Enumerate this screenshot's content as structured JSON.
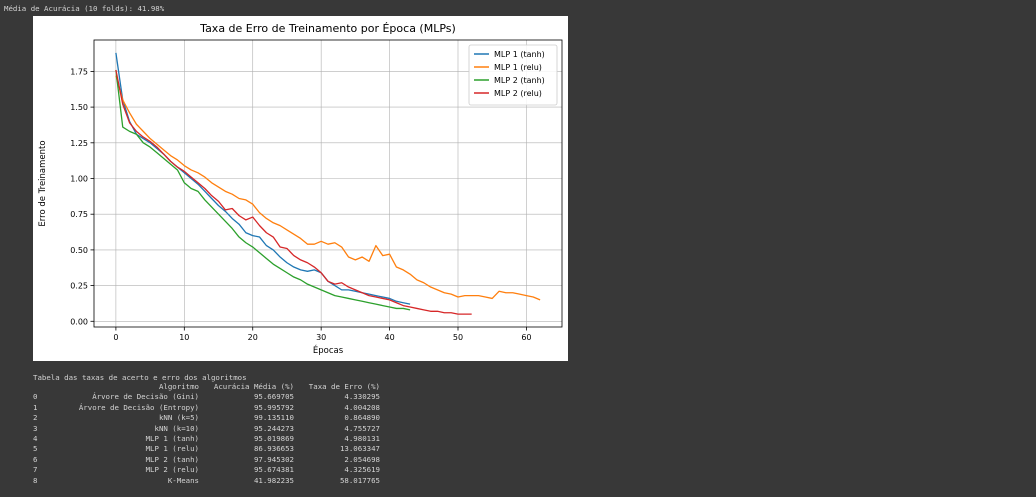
{
  "output": {
    "accuracy_line": "Média de Acurácia (10 folds): 41.98%",
    "table_title": "Tabela das taxas de acerto e erro dos algoritmos"
  },
  "colors": {
    "mlp1_tanh": "#1f77b4",
    "mlp1_relu": "#ff7f0e",
    "mlp2_tanh": "#2ca02c",
    "mlp2_relu": "#d62728"
  },
  "chart_data": {
    "type": "line",
    "title": "Taxa de Erro de Treinamento por Época (MLPs)",
    "xlabel": "Épocas",
    "ylabel": "Erro de Treinamento",
    "xlim": [
      -3.2,
      65.2
    ],
    "ylim": [
      -0.04,
      1.97
    ],
    "xticks": [
      0,
      10,
      20,
      30,
      40,
      50,
      60
    ],
    "yticks": [
      0.0,
      0.25,
      0.5,
      0.75,
      1.0,
      1.25,
      1.5,
      1.75
    ],
    "xtick_labels": [
      "0",
      "10",
      "20",
      "30",
      "40",
      "50",
      "60"
    ],
    "ytick_labels": [
      "0.00",
      "0.25",
      "0.50",
      "0.75",
      "1.00",
      "1.25",
      "1.50",
      "1.75"
    ],
    "grid": true,
    "legend_position": "top-right",
    "series": [
      {
        "name": "MLP 1 (tanh)",
        "color": "#1f77b4",
        "x": [
          0,
          1,
          2,
          3,
          4,
          5,
          6,
          7,
          8,
          9,
          10,
          11,
          12,
          13,
          14,
          15,
          16,
          17,
          18,
          19,
          20,
          21,
          22,
          23,
          24,
          25,
          26,
          27,
          28,
          29,
          30,
          31,
          32,
          33,
          34,
          35,
          36,
          37,
          38,
          39,
          40,
          41,
          42,
          43
        ],
        "y": [
          1.88,
          1.55,
          1.4,
          1.31,
          1.28,
          1.25,
          1.21,
          1.17,
          1.12,
          1.08,
          1.04,
          1.0,
          0.96,
          0.91,
          0.86,
          0.81,
          0.77,
          0.72,
          0.68,
          0.62,
          0.6,
          0.59,
          0.53,
          0.5,
          0.45,
          0.41,
          0.38,
          0.36,
          0.35,
          0.36,
          0.34,
          0.28,
          0.25,
          0.22,
          0.22,
          0.21,
          0.2,
          0.19,
          0.18,
          0.17,
          0.16,
          0.14,
          0.13,
          0.12
        ]
      },
      {
        "name": "MLP 1 (relu)",
        "color": "#ff7f0e",
        "x": [
          0,
          1,
          2,
          3,
          4,
          5,
          6,
          7,
          8,
          9,
          10,
          11,
          12,
          13,
          14,
          15,
          16,
          17,
          18,
          19,
          20,
          21,
          22,
          23,
          24,
          25,
          26,
          27,
          28,
          29,
          30,
          31,
          32,
          33,
          34,
          35,
          36,
          37,
          38,
          39,
          40,
          41,
          42,
          43,
          44,
          45,
          46,
          47,
          48,
          49,
          50,
          51,
          52,
          53,
          54,
          55,
          56,
          57,
          58,
          59,
          60,
          61,
          62
        ],
        "y": [
          1.72,
          1.55,
          1.46,
          1.38,
          1.33,
          1.28,
          1.24,
          1.2,
          1.16,
          1.13,
          1.09,
          1.06,
          1.04,
          1.01,
          0.97,
          0.94,
          0.91,
          0.89,
          0.86,
          0.85,
          0.82,
          0.76,
          0.72,
          0.69,
          0.67,
          0.64,
          0.61,
          0.58,
          0.54,
          0.54,
          0.56,
          0.54,
          0.55,
          0.52,
          0.45,
          0.43,
          0.45,
          0.42,
          0.53,
          0.46,
          0.47,
          0.38,
          0.36,
          0.33,
          0.29,
          0.27,
          0.24,
          0.22,
          0.2,
          0.19,
          0.17,
          0.18,
          0.18,
          0.18,
          0.17,
          0.16,
          0.21,
          0.2,
          0.2,
          0.19,
          0.18,
          0.17,
          0.15
        ]
      },
      {
        "name": "MLP 2 (tanh)",
        "color": "#2ca02c",
        "x": [
          0,
          1,
          2,
          3,
          4,
          5,
          6,
          7,
          8,
          9,
          10,
          11,
          12,
          13,
          14,
          15,
          16,
          17,
          18,
          19,
          20,
          21,
          22,
          23,
          24,
          25,
          26,
          27,
          28,
          29,
          30,
          31,
          32,
          33,
          34,
          35,
          36,
          37,
          38,
          39,
          40,
          41,
          42,
          43
        ],
        "y": [
          1.76,
          1.36,
          1.33,
          1.31,
          1.25,
          1.22,
          1.18,
          1.14,
          1.1,
          1.06,
          0.97,
          0.93,
          0.91,
          0.85,
          0.8,
          0.75,
          0.7,
          0.65,
          0.59,
          0.55,
          0.52,
          0.48,
          0.44,
          0.4,
          0.37,
          0.34,
          0.31,
          0.29,
          0.26,
          0.24,
          0.22,
          0.2,
          0.18,
          0.17,
          0.16,
          0.15,
          0.14,
          0.13,
          0.12,
          0.11,
          0.1,
          0.09,
          0.09,
          0.08
        ]
      },
      {
        "name": "MLP 2 (relu)",
        "color": "#d62728",
        "x": [
          0,
          1,
          2,
          3,
          4,
          5,
          6,
          7,
          8,
          9,
          10,
          11,
          12,
          13,
          14,
          15,
          16,
          17,
          18,
          19,
          20,
          21,
          22,
          23,
          24,
          25,
          26,
          27,
          28,
          29,
          30,
          31,
          32,
          33,
          34,
          35,
          36,
          37,
          38,
          39,
          40,
          41,
          42,
          43,
          44,
          45,
          46,
          47,
          48,
          49,
          50,
          51,
          52
        ],
        "y": [
          1.76,
          1.52,
          1.39,
          1.33,
          1.29,
          1.26,
          1.22,
          1.17,
          1.12,
          1.08,
          1.05,
          1.01,
          0.97,
          0.93,
          0.88,
          0.84,
          0.78,
          0.79,
          0.74,
          0.71,
          0.73,
          0.67,
          0.62,
          0.59,
          0.52,
          0.51,
          0.46,
          0.43,
          0.41,
          0.38,
          0.34,
          0.28,
          0.26,
          0.27,
          0.24,
          0.22,
          0.2,
          0.18,
          0.17,
          0.16,
          0.15,
          0.13,
          0.11,
          0.1,
          0.09,
          0.08,
          0.07,
          0.07,
          0.06,
          0.06,
          0.05,
          0.05,
          0.05
        ]
      }
    ]
  },
  "table": {
    "headers": [
      "",
      "Algoritmo",
      "Acurácia Média (%)",
      "Taxa de Erro (%)"
    ],
    "rows": [
      [
        "0",
        "Árvore de Decisão (Gini)",
        "95.669705",
        "4.330295"
      ],
      [
        "1",
        "Árvore de Decisão (Entropy)",
        "95.995792",
        "4.004208"
      ],
      [
        "2",
        "kNN (k=5)",
        "99.135110",
        "0.864890"
      ],
      [
        "3",
        "kNN (k=10)",
        "95.244273",
        "4.755727"
      ],
      [
        "4",
        "MLP 1 (tanh)",
        "95.019869",
        "4.980131"
      ],
      [
        "5",
        "MLP 1 (relu)",
        "86.936653",
        "13.063347"
      ],
      [
        "6",
        "MLP 2 (tanh)",
        "97.945302",
        "2.054698"
      ],
      [
        "7",
        "MLP 2 (relu)",
        "95.674381",
        "4.325619"
      ],
      [
        "8",
        "K-Means",
        "41.982235",
        "58.017765"
      ]
    ]
  }
}
